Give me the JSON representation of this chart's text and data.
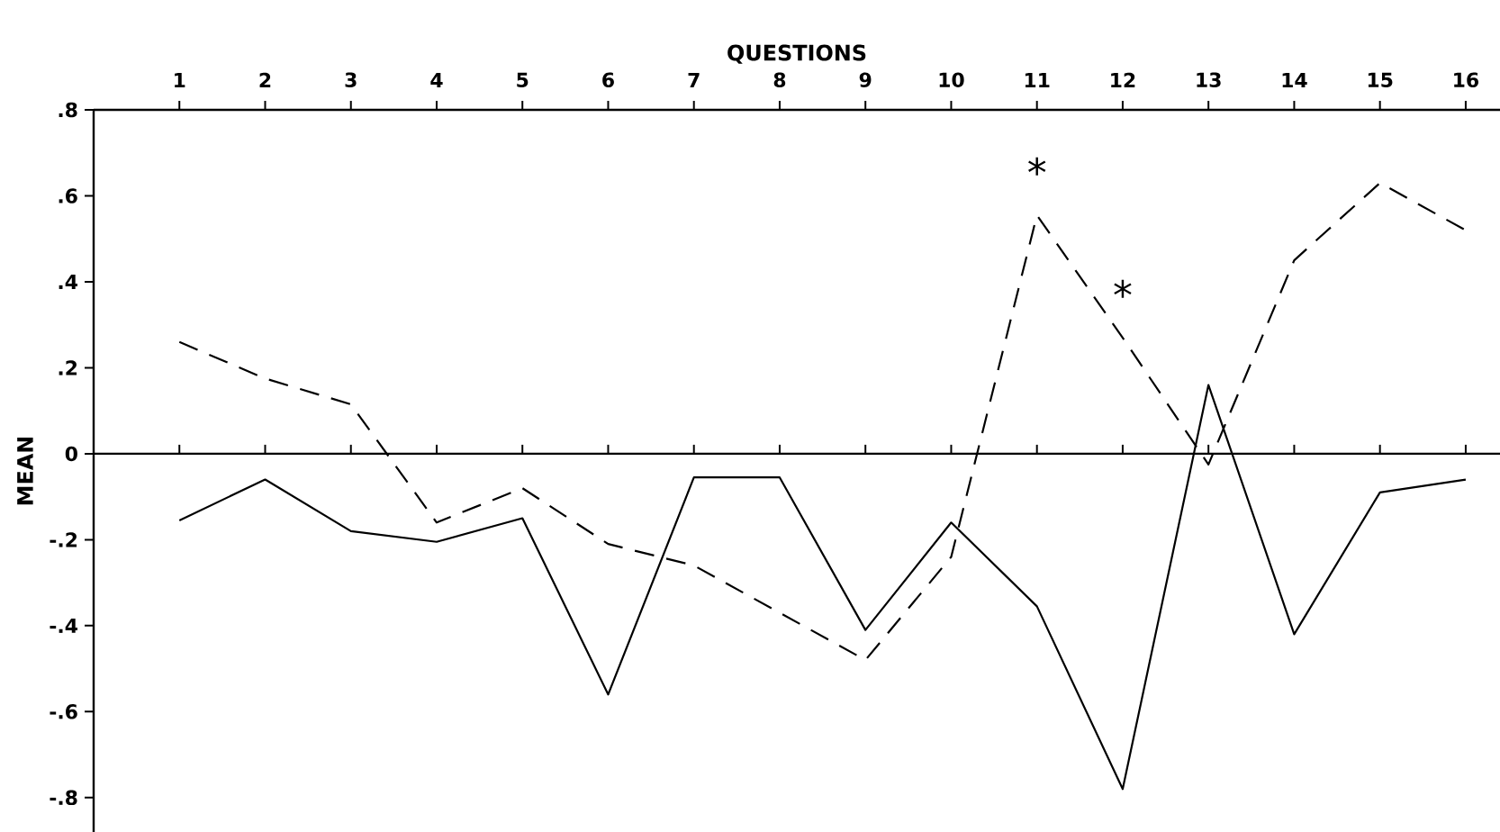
{
  "chart_data": {
    "type": "line",
    "xlabel": "QUESTIONS",
    "ylabel": "MEAN",
    "x": [
      1,
      2,
      3,
      4,
      5,
      6,
      7,
      8,
      9,
      10,
      11,
      12,
      13,
      14,
      15,
      16
    ],
    "series": [
      {
        "color": "#000000",
        "line_style": "dashed",
        "values": [
          0.26,
          0.175,
          0.115,
          -0.16,
          -0.08,
          -0.21,
          -0.26,
          -0.37,
          -0.48,
          -0.24,
          0.555,
          0.27,
          -0.025,
          0.45,
          0.63,
          0.52
        ]
      },
      {
        "color": "#000000",
        "line_style": "solid",
        "values": [
          -0.155,
          -0.06,
          -0.18,
          -0.205,
          -0.15,
          -0.56,
          -0.055,
          -0.055,
          -0.41,
          -0.16,
          -0.355,
          -0.78,
          0.16,
          -0.42,
          -0.09,
          -0.06
        ]
      }
    ],
    "xlim": [
      0,
      16.4
    ],
    "ylim": [
      -0.88,
      0.8
    ],
    "xticks": [
      1,
      2,
      3,
      4,
      5,
      6,
      7,
      8,
      9,
      10,
      11,
      12,
      13,
      14,
      15,
      16
    ],
    "yticks": [
      {
        "value": 0.8,
        "label": ".8"
      },
      {
        "value": 0.6,
        "label": ".6"
      },
      {
        "value": 0.4,
        "label": ".4"
      },
      {
        "value": 0.2,
        "label": ".2"
      },
      0,
      {
        "value": -0.2,
        "label": "-.2"
      },
      {
        "value": -0.4,
        "label": "-.4"
      },
      {
        "value": -0.6,
        "label": "-.6"
      },
      {
        "value": -0.8,
        "label": "-.8"
      }
    ],
    "ref_lines": [
      {
        "axis": "y",
        "value": 0
      }
    ],
    "annotations": [
      {
        "text": "*",
        "x": 11,
        "y": 0.555
      },
      {
        "text": "*",
        "x": 12,
        "y": 0.27
      }
    ],
    "grid": false,
    "marker": "none"
  }
}
